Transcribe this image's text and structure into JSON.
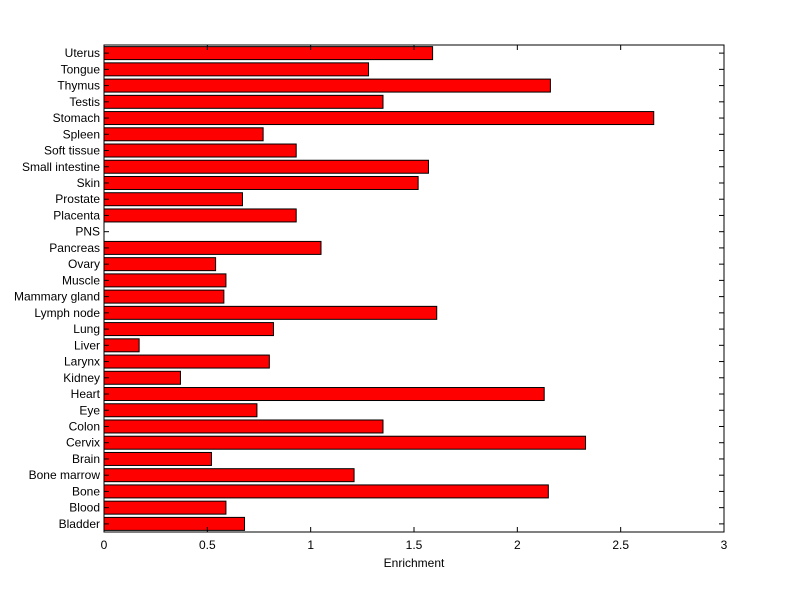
{
  "chart_data": {
    "type": "bar",
    "orientation": "horizontal",
    "title": "",
    "xlabel": "Enrichment",
    "ylabel": "",
    "xlim": [
      0,
      3
    ],
    "xticks": [
      0,
      0.5,
      1,
      1.5,
      2,
      2.5,
      3
    ],
    "xtick_labels": [
      "0",
      "0.5",
      "1",
      "1.5",
      "2",
      "2.5",
      "3"
    ],
    "grid": false,
    "bar_color": "#ff0000",
    "bar_edge_color": "#000000",
    "categories": [
      "Bladder",
      "Blood",
      "Bone",
      "Bone marrow",
      "Brain",
      "Cervix",
      "Colon",
      "Eye",
      "Heart",
      "Kidney",
      "Larynx",
      "Liver",
      "Lung",
      "Lymph node",
      "Mammary gland",
      "Muscle",
      "Ovary",
      "Pancreas",
      "PNS",
      "Placenta",
      "Prostate",
      "Skin",
      "Small intestine",
      "Soft tissue",
      "Spleen",
      "Stomach",
      "Testis",
      "Thymus",
      "Tongue",
      "Uterus"
    ],
    "values": [
      0.68,
      0.59,
      2.15,
      1.21,
      0.52,
      2.33,
      1.35,
      0.74,
      2.13,
      0.37,
      0.8,
      0.17,
      0.82,
      1.61,
      0.58,
      0.59,
      0.54,
      1.05,
      0.0,
      0.93,
      0.67,
      1.52,
      1.57,
      0.93,
      0.77,
      2.66,
      1.35,
      2.16,
      1.28,
      1.59
    ]
  }
}
